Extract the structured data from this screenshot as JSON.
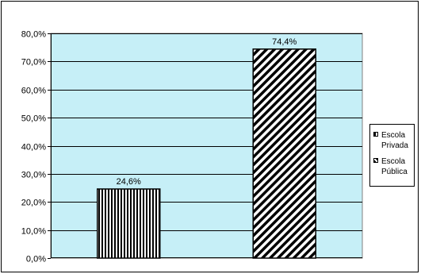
{
  "chart_data": {
    "type": "bar",
    "categories": [
      "Escola Privada",
      "Escola Pública"
    ],
    "series": [
      {
        "name": "Escola Privada",
        "values": [
          24.6,
          null
        ],
        "pattern": "vertical-stripes",
        "label": "24,6%"
      },
      {
        "name": "Escola Pública",
        "values": [
          null,
          74.4
        ],
        "pattern": "diagonal-stripes",
        "label": "74,4%"
      }
    ],
    "values": [
      24.6,
      74.4
    ],
    "ylim": [
      0,
      80
    ],
    "yticks": [
      0,
      10,
      20,
      30,
      40,
      50,
      60,
      70,
      80
    ],
    "ytick_labels": [
      "0,0%",
      "10,0%",
      "20,0%",
      "30,0%",
      "40,0%",
      "50,0%",
      "60,0%",
      "70,0%",
      "80,0%"
    ],
    "grid": true,
    "legend_position": "right",
    "colors": {
      "plot_background": "#c6eff7",
      "bar_fill": "#ffffff",
      "stroke": "#000000"
    }
  },
  "legend": {
    "items": [
      {
        "line1": "Escola",
        "line2": "Privada"
      },
      {
        "line1": "Escola",
        "line2": "Pública"
      }
    ]
  }
}
